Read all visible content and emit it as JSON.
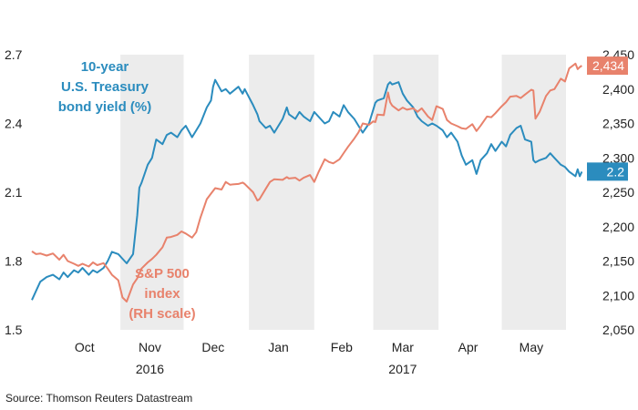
{
  "chart_data": {
    "type": "line",
    "title": "",
    "source": "Source: Thomson Reuters Datastream",
    "x_range": [
      "2016-09-20",
      "2017-05-31"
    ],
    "years": [
      {
        "label": "2016",
        "date": "2016-11-15"
      },
      {
        "label": "2017",
        "date": "2017-03-15"
      }
    ],
    "months": [
      {
        "label": "Oct",
        "date": "2016-10-15",
        "shaded": false
      },
      {
        "label": "Nov",
        "date": "2016-11-15",
        "shaded": true
      },
      {
        "label": "Dec",
        "date": "2016-12-15",
        "shaded": false
      },
      {
        "label": "Jan",
        "date": "2017-01-15",
        "shaded": true
      },
      {
        "label": "Feb",
        "date": "2017-02-14",
        "shaded": false
      },
      {
        "label": "Mar",
        "date": "2017-03-15",
        "shaded": true
      },
      {
        "label": "Apr",
        "date": "2017-04-15",
        "shaded": false
      },
      {
        "label": "May",
        "date": "2017-05-15",
        "shaded": true
      }
    ],
    "shaded_periods": [
      [
        "2016-11-01",
        "2016-12-01"
      ],
      [
        "2017-01-01",
        "2017-02-01"
      ],
      [
        "2017-03-01",
        "2017-04-01"
      ],
      [
        "2017-05-01",
        "2017-06-01"
      ]
    ],
    "left_axis": {
      "min": 1.5,
      "max": 2.7,
      "ticks": [
        1.5,
        1.8,
        2.1,
        2.4,
        2.7
      ],
      "tick_labels": [
        "1.5",
        "1.8",
        "2.1",
        "2.4",
        "2.7"
      ]
    },
    "right_axis": {
      "min": 2050,
      "max": 2450,
      "ticks": [
        2050,
        2100,
        2150,
        2200,
        2250,
        2300,
        2350,
        2400,
        2450
      ],
      "tick_labels": [
        "2,050",
        "2,100",
        "2,150",
        "2,200",
        "2,250",
        "2,300",
        "2,350",
        "2,400",
        "2,450"
      ]
    },
    "grid": false,
    "series": [
      {
        "name": "10-year U.S. Treasury bond yield (%)",
        "label_lines": [
          "10-year",
          "U.S. Treasury",
          "bond yield (%)"
        ],
        "axis": "left",
        "color": "#2b8cbe",
        "last_label": "2.2",
        "points": [
          [
            "2016-09-20",
            1.63
          ],
          [
            "2016-09-22",
            1.67
          ],
          [
            "2016-09-24",
            1.71
          ],
          [
            "2016-09-27",
            1.73
          ],
          [
            "2016-09-30",
            1.74
          ],
          [
            "2016-10-03",
            1.72
          ],
          [
            "2016-10-05",
            1.75
          ],
          [
            "2016-10-07",
            1.73
          ],
          [
            "2016-10-10",
            1.76
          ],
          [
            "2016-10-12",
            1.75
          ],
          [
            "2016-10-14",
            1.77
          ],
          [
            "2016-10-17",
            1.74
          ],
          [
            "2016-10-19",
            1.76
          ],
          [
            "2016-10-21",
            1.75
          ],
          [
            "2016-10-24",
            1.77
          ],
          [
            "2016-10-26",
            1.8
          ],
          [
            "2016-10-28",
            1.84
          ],
          [
            "2016-10-31",
            1.83
          ],
          [
            "2016-11-02",
            1.81
          ],
          [
            "2016-11-04",
            1.79
          ],
          [
            "2016-11-07",
            1.83
          ],
          [
            "2016-11-09",
            2.0
          ],
          [
            "2016-11-10",
            2.12
          ],
          [
            "2016-11-11",
            2.14
          ],
          [
            "2016-11-14",
            2.22
          ],
          [
            "2016-11-16",
            2.25
          ],
          [
            "2016-11-18",
            2.33
          ],
          [
            "2016-11-21",
            2.31
          ],
          [
            "2016-11-23",
            2.35
          ],
          [
            "2016-11-25",
            2.36
          ],
          [
            "2016-11-28",
            2.34
          ],
          [
            "2016-11-30",
            2.37
          ],
          [
            "2016-12-02",
            2.39
          ],
          [
            "2016-12-05",
            2.34
          ],
          [
            "2016-12-07",
            2.37
          ],
          [
            "2016-12-09",
            2.4
          ],
          [
            "2016-12-12",
            2.47
          ],
          [
            "2016-12-14",
            2.5
          ],
          [
            "2016-12-15",
            2.56
          ],
          [
            "2016-12-16",
            2.59
          ],
          [
            "2016-12-19",
            2.54
          ],
          [
            "2016-12-21",
            2.55
          ],
          [
            "2016-12-23",
            2.53
          ],
          [
            "2016-12-27",
            2.56
          ],
          [
            "2016-12-29",
            2.53
          ],
          [
            "2016-12-30",
            2.55
          ],
          [
            "2017-01-03",
            2.48
          ],
          [
            "2017-01-05",
            2.44
          ],
          [
            "2017-01-06",
            2.41
          ],
          [
            "2017-01-09",
            2.38
          ],
          [
            "2017-01-11",
            2.39
          ],
          [
            "2017-01-13",
            2.36
          ],
          [
            "2017-01-17",
            2.42
          ],
          [
            "2017-01-19",
            2.47
          ],
          [
            "2017-01-20",
            2.44
          ],
          [
            "2017-01-23",
            2.42
          ],
          [
            "2017-01-25",
            2.45
          ],
          [
            "2017-01-27",
            2.43
          ],
          [
            "2017-01-30",
            2.41
          ],
          [
            "2017-02-01",
            2.45
          ],
          [
            "2017-02-03",
            2.43
          ],
          [
            "2017-02-06",
            2.4
          ],
          [
            "2017-02-08",
            2.41
          ],
          [
            "2017-02-10",
            2.45
          ],
          [
            "2017-02-13",
            2.43
          ],
          [
            "2017-02-15",
            2.48
          ],
          [
            "2017-02-17",
            2.45
          ],
          [
            "2017-02-20",
            2.42
          ],
          [
            "2017-02-22",
            2.39
          ],
          [
            "2017-02-24",
            2.36
          ],
          [
            "2017-02-27",
            2.4
          ],
          [
            "2017-03-01",
            2.46
          ],
          [
            "2017-03-02",
            2.49
          ],
          [
            "2017-03-03",
            2.5
          ],
          [
            "2017-03-06",
            2.51
          ],
          [
            "2017-03-08",
            2.57
          ],
          [
            "2017-03-09",
            2.58
          ],
          [
            "2017-03-10",
            2.57
          ],
          [
            "2017-03-13",
            2.58
          ],
          [
            "2017-03-15",
            2.53
          ],
          [
            "2017-03-17",
            2.5
          ],
          [
            "2017-03-20",
            2.47
          ],
          [
            "2017-03-22",
            2.43
          ],
          [
            "2017-03-24",
            2.41
          ],
          [
            "2017-03-27",
            2.39
          ],
          [
            "2017-03-29",
            2.4
          ],
          [
            "2017-03-31",
            2.39
          ],
          [
            "2017-04-03",
            2.37
          ],
          [
            "2017-04-05",
            2.34
          ],
          [
            "2017-04-07",
            2.36
          ],
          [
            "2017-04-10",
            2.32
          ],
          [
            "2017-04-12",
            2.26
          ],
          [
            "2017-04-14",
            2.22
          ],
          [
            "2017-04-17",
            2.24
          ],
          [
            "2017-04-19",
            2.18
          ],
          [
            "2017-04-21",
            2.24
          ],
          [
            "2017-04-24",
            2.27
          ],
          [
            "2017-04-26",
            2.31
          ],
          [
            "2017-04-28",
            2.28
          ],
          [
            "2017-05-01",
            2.32
          ],
          [
            "2017-05-03",
            2.3
          ],
          [
            "2017-05-05",
            2.35
          ],
          [
            "2017-05-08",
            2.38
          ],
          [
            "2017-05-10",
            2.39
          ],
          [
            "2017-05-12",
            2.33
          ],
          [
            "2017-05-15",
            2.32
          ],
          [
            "2017-05-16",
            2.24
          ],
          [
            "2017-05-17",
            2.23
          ],
          [
            "2017-05-19",
            2.24
          ],
          [
            "2017-05-22",
            2.25
          ],
          [
            "2017-05-24",
            2.27
          ],
          [
            "2017-05-26",
            2.25
          ],
          [
            "2017-05-29",
            2.22
          ],
          [
            "2017-05-31",
            2.21
          ],
          [
            "2017-06-02",
            2.19
          ],
          [
            "2017-06-05",
            2.17
          ],
          [
            "2017-06-06",
            2.2
          ],
          [
            "2017-06-07",
            2.17
          ],
          [
            "2017-06-08",
            2.19
          ]
        ]
      },
      {
        "name": "S&P 500 index (RH scale)",
        "label_lines": [
          "S&P 500",
          "index",
          "(RH scale)"
        ],
        "axis": "right",
        "color": "#e8826c",
        "last_label": "2,434",
        "points": [
          [
            "2016-09-20",
            2164
          ],
          [
            "2016-09-22",
            2160
          ],
          [
            "2016-09-24",
            2161
          ],
          [
            "2016-09-27",
            2158
          ],
          [
            "2016-09-30",
            2161
          ],
          [
            "2016-10-03",
            2152
          ],
          [
            "2016-10-05",
            2159
          ],
          [
            "2016-10-07",
            2150
          ],
          [
            "2016-10-10",
            2146
          ],
          [
            "2016-10-12",
            2143
          ],
          [
            "2016-10-14",
            2146
          ],
          [
            "2016-10-17",
            2142
          ],
          [
            "2016-10-19",
            2148
          ],
          [
            "2016-10-21",
            2144
          ],
          [
            "2016-10-24",
            2147
          ],
          [
            "2016-10-26",
            2139
          ],
          [
            "2016-10-28",
            2130
          ],
          [
            "2016-10-31",
            2122
          ],
          [
            "2016-11-02",
            2097
          ],
          [
            "2016-11-04",
            2091
          ],
          [
            "2016-11-07",
            2116
          ],
          [
            "2016-11-09",
            2125
          ],
          [
            "2016-11-11",
            2139
          ],
          [
            "2016-11-14",
            2148
          ],
          [
            "2016-11-16",
            2153
          ],
          [
            "2016-11-18",
            2159
          ],
          [
            "2016-11-21",
            2170
          ],
          [
            "2016-11-23",
            2184
          ],
          [
            "2016-11-25",
            2185
          ],
          [
            "2016-11-28",
            2188
          ],
          [
            "2016-11-30",
            2193
          ],
          [
            "2016-12-02",
            2190
          ],
          [
            "2016-12-05",
            2184
          ],
          [
            "2016-12-07",
            2192
          ],
          [
            "2016-12-09",
            2213
          ],
          [
            "2016-12-12",
            2240
          ],
          [
            "2016-12-14",
            2248
          ],
          [
            "2016-12-16",
            2256
          ],
          [
            "2016-12-19",
            2254
          ],
          [
            "2016-12-21",
            2265
          ],
          [
            "2016-12-23",
            2261
          ],
          [
            "2016-12-27",
            2262
          ],
          [
            "2016-12-29",
            2264
          ],
          [
            "2016-12-30",
            2262
          ],
          [
            "2017-01-03",
            2250
          ],
          [
            "2017-01-05",
            2238
          ],
          [
            "2017-01-06",
            2240
          ],
          [
            "2017-01-09",
            2255
          ],
          [
            "2017-01-11",
            2265
          ],
          [
            "2017-01-13",
            2269
          ],
          [
            "2017-01-17",
            2268
          ],
          [
            "2017-01-19",
            2272
          ],
          [
            "2017-01-20",
            2270
          ],
          [
            "2017-01-23",
            2271
          ],
          [
            "2017-01-25",
            2267
          ],
          [
            "2017-01-27",
            2271
          ],
          [
            "2017-01-30",
            2275
          ],
          [
            "2017-02-01",
            2265
          ],
          [
            "2017-02-03",
            2279
          ],
          [
            "2017-02-06",
            2298
          ],
          [
            "2017-02-08",
            2294
          ],
          [
            "2017-02-10",
            2292
          ],
          [
            "2017-02-13",
            2298
          ],
          [
            "2017-02-15",
            2307
          ],
          [
            "2017-02-17",
            2316
          ],
          [
            "2017-02-20",
            2328
          ],
          [
            "2017-02-22",
            2337
          ],
          [
            "2017-02-24",
            2350
          ],
          [
            "2017-02-27",
            2348
          ],
          [
            "2017-03-01",
            2353
          ],
          [
            "2017-03-02",
            2352
          ],
          [
            "2017-03-03",
            2363
          ],
          [
            "2017-03-06",
            2362
          ],
          [
            "2017-03-08",
            2395
          ],
          [
            "2017-03-09",
            2381
          ],
          [
            "2017-03-10",
            2376
          ],
          [
            "2017-03-13",
            2369
          ],
          [
            "2017-03-15",
            2373
          ],
          [
            "2017-03-17",
            2370
          ],
          [
            "2017-03-20",
            2372
          ],
          [
            "2017-03-22",
            2367
          ],
          [
            "2017-03-24",
            2372
          ],
          [
            "2017-03-27",
            2360
          ],
          [
            "2017-03-29",
            2355
          ],
          [
            "2017-03-31",
            2375
          ],
          [
            "2017-04-03",
            2371
          ],
          [
            "2017-04-05",
            2355
          ],
          [
            "2017-04-07",
            2350
          ],
          [
            "2017-04-10",
            2346
          ],
          [
            "2017-04-12",
            2343
          ],
          [
            "2017-04-14",
            2342
          ],
          [
            "2017-04-17",
            2349
          ],
          [
            "2017-04-19",
            2339
          ],
          [
            "2017-04-21",
            2347
          ],
          [
            "2017-04-24",
            2360
          ],
          [
            "2017-04-26",
            2359
          ],
          [
            "2017-04-28",
            2365
          ],
          [
            "2017-05-01",
            2375
          ],
          [
            "2017-05-03",
            2381
          ],
          [
            "2017-05-05",
            2389
          ],
          [
            "2017-05-08",
            2390
          ],
          [
            "2017-05-10",
            2387
          ],
          [
            "2017-05-12",
            2392
          ],
          [
            "2017-05-15",
            2399
          ],
          [
            "2017-05-16",
            2398
          ],
          [
            "2017-05-17",
            2357
          ],
          [
            "2017-05-19",
            2367
          ],
          [
            "2017-05-22",
            2390
          ],
          [
            "2017-05-24",
            2398
          ],
          [
            "2017-05-26",
            2400
          ],
          [
            "2017-05-29",
            2415
          ],
          [
            "2017-05-31",
            2411
          ],
          [
            "2017-06-02",
            2430
          ],
          [
            "2017-06-05",
            2437
          ],
          [
            "2017-06-06",
            2429
          ],
          [
            "2017-06-07",
            2432
          ],
          [
            "2017-06-08",
            2434
          ]
        ]
      }
    ]
  }
}
